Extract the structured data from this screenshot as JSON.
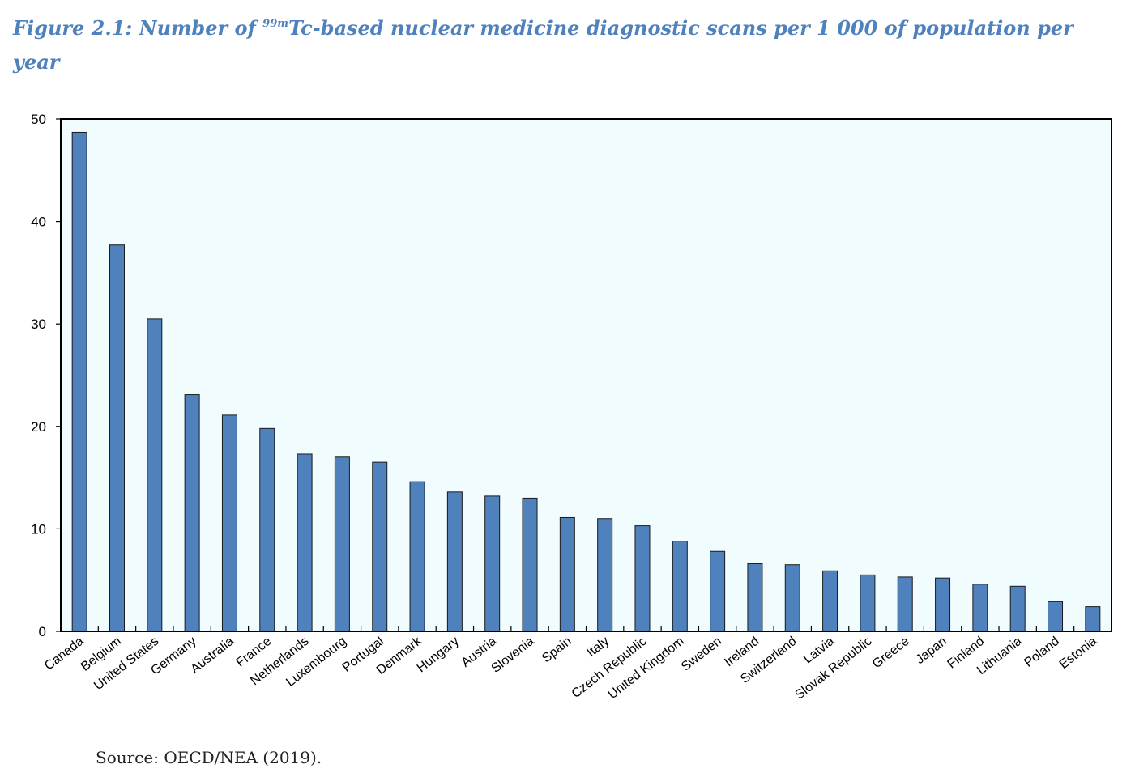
{
  "figure": {
    "title_prefix": "Figure 2.1: Number of ",
    "title_superscript": "99m",
    "title_suffix": "Tc-based nuclear medicine diagnostic scans per 1 000 of population per year",
    "source": "Source: OECD/NEA (2019)."
  },
  "colors": {
    "bar_fill": "#4f81bd",
    "bar_stroke": "#1a1a1a",
    "plot_background": "#f0fcfd",
    "title": "#4f81bd"
  },
  "chart_data": {
    "type": "bar",
    "title": "",
    "xlabel": "",
    "ylabel": "",
    "ylim": [
      0,
      50
    ],
    "yticks": [
      0,
      10,
      20,
      30,
      40,
      50
    ],
    "grid": false,
    "categories": [
      "Canada",
      "Belgium",
      "United States",
      "Germany",
      "Australia",
      "France",
      "Netherlands",
      "Luxembourg",
      "Portugal",
      "Denmark",
      "Hungary",
      "Austria",
      "Slovenia",
      "Spain",
      "Italy",
      "Czech Republic",
      "United Kingdom",
      "Sweden",
      "Ireland",
      "Switzerland",
      "Latvia",
      "Slovak Republic",
      "Greece",
      "Japan",
      "Finland",
      "Lithuania",
      "Poland",
      "Estonia"
    ],
    "values": [
      48.7,
      37.7,
      30.5,
      23.1,
      21.1,
      19.8,
      17.3,
      17.0,
      16.5,
      14.6,
      13.6,
      13.2,
      13.0,
      11.1,
      11.0,
      10.3,
      8.8,
      7.8,
      6.6,
      6.5,
      5.9,
      5.5,
      5.3,
      5.2,
      4.6,
      4.4,
      2.9,
      2.4
    ]
  }
}
